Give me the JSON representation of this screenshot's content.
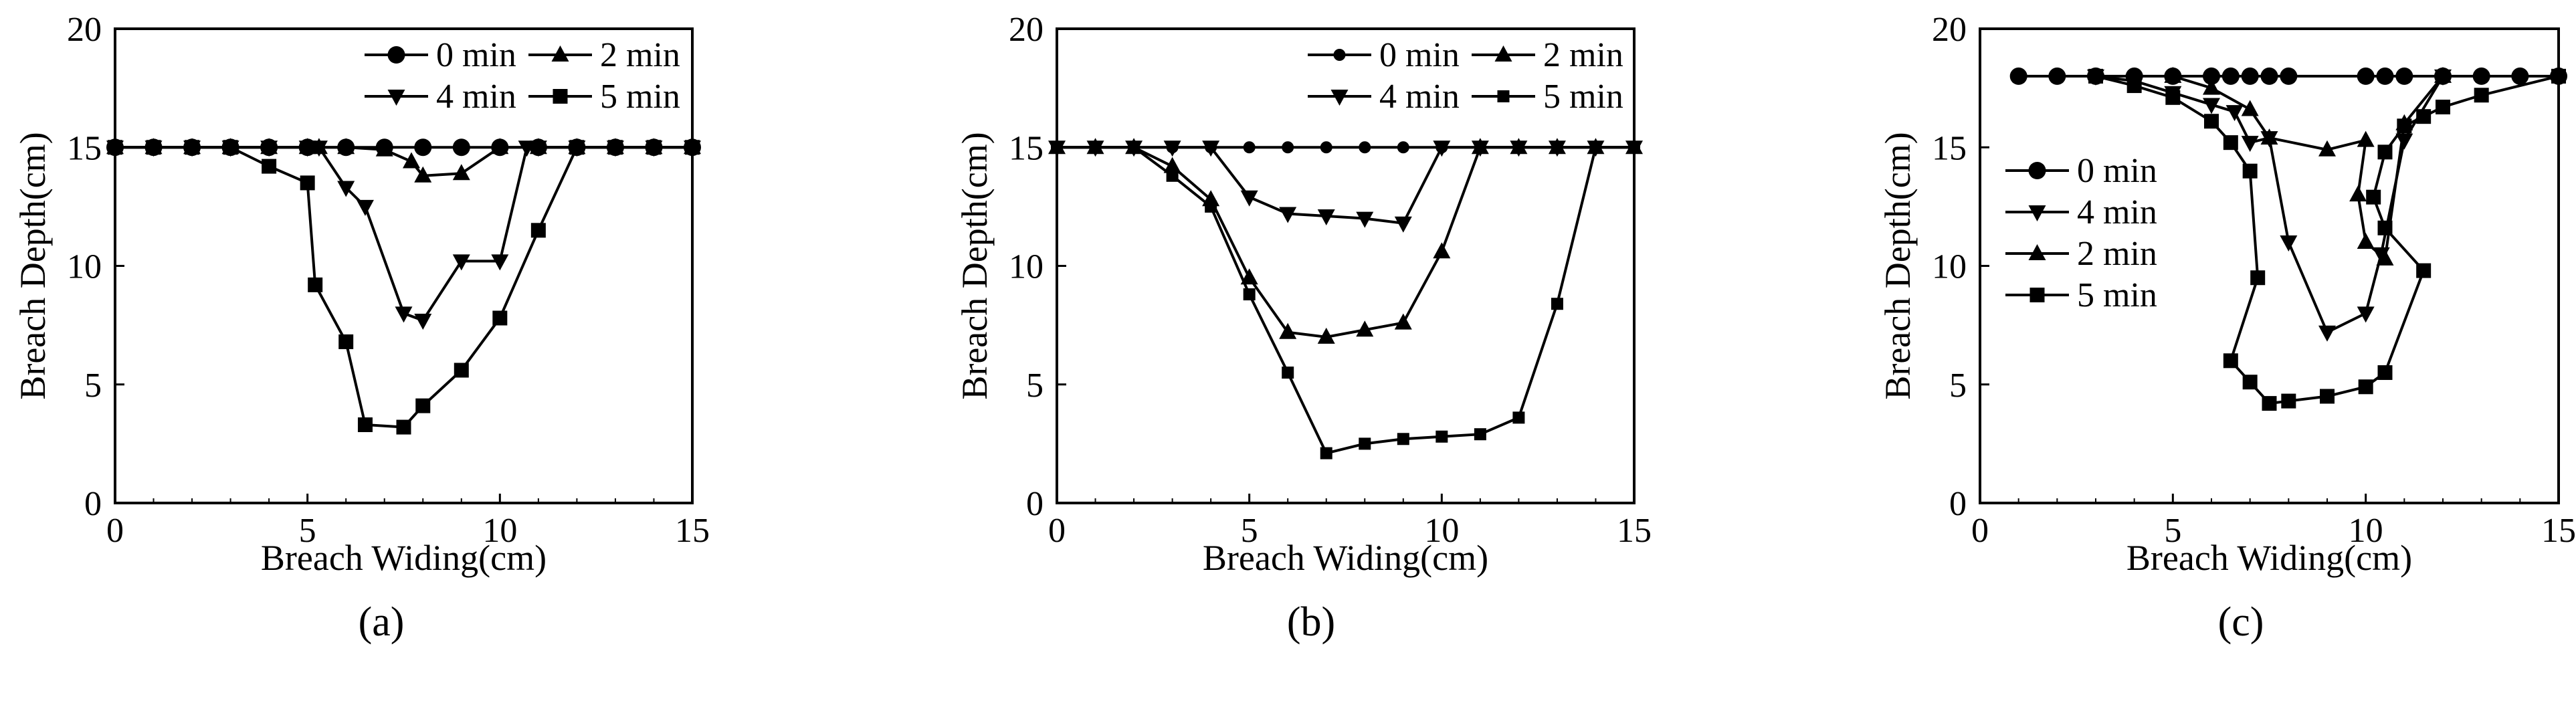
{
  "chart_data": [
    {
      "panel": "(a)",
      "type": "line",
      "xlabel": "Breach Widing(cm)",
      "ylabel": "Breach Depth(cm)",
      "xlim": [
        0,
        15
      ],
      "ylim": [
        0,
        20
      ],
      "xticks": [
        "0",
        "5",
        "10",
        "15"
      ],
      "yticks": [
        "0",
        "5",
        "10",
        "15",
        "20"
      ],
      "grid": false,
      "legend_position": "top-right",
      "legend_columns": 2,
      "series": [
        {
          "name": "0 min",
          "marker": "circle",
          "x": [
            0,
            1,
            2,
            3,
            4,
            5,
            6,
            7,
            8,
            9,
            10,
            11,
            12,
            13,
            14,
            15
          ],
          "y": [
            15,
            15,
            15,
            15,
            15,
            15,
            15,
            15,
            15,
            15,
            15,
            15,
            15,
            15,
            15,
            15
          ]
        },
        {
          "name": "2 min",
          "marker": "triangle-up",
          "x": [
            0,
            1,
            2,
            3,
            4,
            5,
            5.3,
            6,
            7,
            7.7,
            8,
            9,
            10,
            11,
            12,
            13,
            14,
            15
          ],
          "y": [
            15,
            15,
            15,
            15,
            15,
            15,
            15,
            15,
            14.9,
            14.4,
            13.8,
            13.9,
            15,
            15,
            15,
            15,
            15,
            15
          ]
        },
        {
          "name": "4 min",
          "marker": "triangle-down",
          "x": [
            0,
            1,
            2,
            3,
            4,
            5,
            5.3,
            6,
            6.5,
            7.5,
            8,
            9,
            10,
            10.7,
            11,
            12,
            13,
            14,
            15
          ],
          "y": [
            15,
            15,
            15,
            15,
            15,
            15,
            15,
            13.3,
            12.5,
            8,
            7.7,
            10.2,
            10.2,
            15,
            15,
            15,
            15,
            15,
            15
          ]
        },
        {
          "name": "5 min",
          "marker": "square",
          "x": [
            0,
            1,
            2,
            3,
            4,
            5,
            5.2,
            6,
            6.5,
            7.5,
            8,
            9,
            10,
            11,
            12,
            13,
            14,
            15
          ],
          "y": [
            15,
            15,
            15,
            15,
            14.2,
            13.5,
            9.2,
            6.8,
            3.3,
            3.2,
            4.1,
            5.6,
            7.8,
            11.5,
            15,
            15,
            15,
            15
          ]
        }
      ]
    },
    {
      "panel": "(b)",
      "type": "line",
      "xlabel": "Breach Widing(cm)",
      "ylabel": "Breach Depth(cm)",
      "xlim": [
        0,
        15
      ],
      "ylim": [
        0,
        20
      ],
      "xticks": [
        "0",
        "5",
        "10",
        "15"
      ],
      "yticks": [
        "0",
        "5",
        "10",
        "15",
        "20"
      ],
      "grid": false,
      "legend_position": "top-right",
      "legend_columns": 2,
      "series": [
        {
          "name": "0 min",
          "marker": "small-circle",
          "x": [
            0,
            1,
            2,
            3,
            4,
            5,
            6,
            7,
            8,
            9,
            10,
            11,
            12,
            13,
            14,
            15
          ],
          "y": [
            15,
            15,
            15,
            15,
            15,
            15,
            15,
            15,
            15,
            15,
            15,
            15,
            15,
            15,
            15,
            15
          ]
        },
        {
          "name": "2 min",
          "marker": "triangle-up",
          "x": [
            0,
            1,
            2,
            3,
            4,
            5,
            6,
            7,
            8,
            9,
            10,
            11,
            12,
            13,
            14,
            15
          ],
          "y": [
            15,
            15,
            15,
            14.2,
            12.8,
            9.5,
            7.2,
            7.0,
            7.3,
            7.6,
            10.6,
            15,
            15,
            15,
            15,
            15
          ]
        },
        {
          "name": "4 min",
          "marker": "triangle-down",
          "x": [
            0,
            1,
            2,
            3,
            4,
            5,
            6,
            7,
            8,
            9,
            10,
            11,
            12,
            13,
            14,
            15
          ],
          "y": [
            15,
            15,
            15,
            15,
            15,
            12.9,
            12.2,
            12.1,
            12.0,
            11.8,
            15,
            15,
            15,
            15,
            15,
            15
          ]
        },
        {
          "name": "5 min",
          "marker": "small-square",
          "x": [
            0,
            1,
            2,
            3,
            4,
            5,
            6,
            7,
            8,
            9,
            10,
            11,
            12,
            13,
            14,
            15
          ],
          "y": [
            15,
            15,
            15,
            13.8,
            12.5,
            8.8,
            5.5,
            2.1,
            2.5,
            2.7,
            2.8,
            2.9,
            3.6,
            8.4,
            15,
            15
          ]
        }
      ]
    },
    {
      "panel": "(c)",
      "type": "line",
      "xlabel": "Breach Widing(cm)",
      "ylabel": "Breach Depth(cm)",
      "xlim": [
        0,
        15
      ],
      "ylim": [
        0,
        20
      ],
      "xticks": [
        "0",
        "5",
        "10",
        "15"
      ],
      "yticks": [
        "0",
        "5",
        "10",
        "15",
        "20"
      ],
      "grid": false,
      "legend_position": "center-left",
      "legend_columns": 1,
      "series": [
        {
          "name": "0 min",
          "marker": "circle",
          "x": [
            1,
            2,
            3,
            4,
            5,
            6,
            6.5,
            7,
            7.5,
            8,
            10,
            10.5,
            11,
            12,
            13,
            14,
            15
          ],
          "y": [
            18,
            18,
            18,
            18,
            18,
            18,
            18,
            18,
            18,
            18,
            18,
            18,
            18,
            18,
            18,
            18,
            18
          ]
        },
        {
          "name": "4 min",
          "marker": "triangle-down",
          "x": [
            3,
            4,
            5,
            6,
            6.6,
            7,
            7.5,
            8,
            9,
            10,
            10.4,
            11,
            12
          ],
          "y": [
            18,
            17.8,
            17.3,
            16.8,
            16.5,
            15.2,
            15.4,
            11.0,
            7.2,
            8.0,
            10.5,
            15.3,
            18
          ]
        },
        {
          "name": "2 min",
          "marker": "triangle-up",
          "x": [
            5,
            6,
            7,
            7.5,
            9,
            10,
            9.8,
            10,
            10.5,
            11,
            12
          ],
          "y": [
            18,
            17.5,
            16.6,
            15.4,
            14.9,
            15.3,
            13.0,
            11.0,
            10.3,
            16,
            18
          ]
        },
        {
          "name": "5 min",
          "marker": "square",
          "x": [
            3,
            4,
            5,
            6,
            6.5,
            7,
            7.2,
            6.5,
            7,
            7.5,
            8,
            9,
            10,
            10.5,
            11.5,
            10.5,
            10.2,
            10.5,
            11,
            11.5,
            12,
            13,
            15
          ],
          "y": [
            18,
            17.6,
            17.1,
            16.1,
            15.2,
            14.0,
            9.5,
            6.0,
            5.1,
            4.2,
            4.3,
            4.5,
            4.9,
            5.5,
            9.8,
            11.6,
            12.9,
            14.8,
            15.9,
            16.3,
            16.7,
            17.2,
            18
          ]
        }
      ]
    }
  ],
  "labels": [
    "(a)",
    "(b)",
    "(c)"
  ]
}
